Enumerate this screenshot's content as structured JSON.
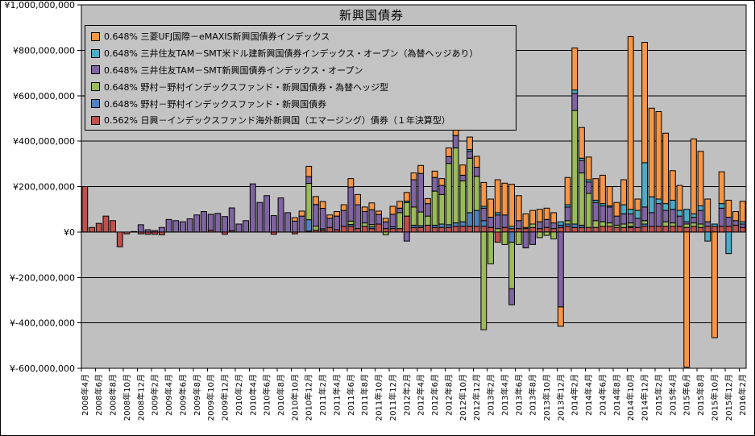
{
  "title": "新興国債券",
  "colors": {
    "plot_bg": "#C0C0C0",
    "chart_bg": "#FFFFFF",
    "border": "#000000",
    "gridline": "#000000"
  },
  "chart_data": {
    "type": "bar",
    "stacked": true,
    "unit": "JPY (values stored in millions of yen)",
    "title": "新興国債券",
    "grid": true,
    "legend_position": "top-left-inside",
    "y_axis": {
      "min": -600,
      "max": 1000,
      "step": 200,
      "tick_values": [
        1000,
        800,
        600,
        400,
        200,
        0,
        -200,
        -400,
        -600
      ],
      "tick_labels": [
        "¥1,000,000,000",
        "¥800,000,000",
        "¥600,000,000",
        "¥400,000,000",
        "¥200,000,000",
        "¥0",
        "¥-200,000,000",
        "¥-400,000,000",
        "¥-600,000,000"
      ]
    },
    "x_tick_label_every": 2,
    "categories": [
      "2008年4月",
      "2008年5月",
      "2008年6月",
      "2008年7月",
      "2008年8月",
      "2008年9月",
      "2008年10月",
      "2008年11月",
      "2008年12月",
      "2009年1月",
      "2009年2月",
      "2009年3月",
      "2009年4月",
      "2009年5月",
      "2009年6月",
      "2009年7月",
      "2009年8月",
      "2009年9月",
      "2009年10月",
      "2009年11月",
      "2009年12月",
      "2010年1月",
      "2010年2月",
      "2010年3月",
      "2010年4月",
      "2010年5月",
      "2010年6月",
      "2010年7月",
      "2010年8月",
      "2010年9月",
      "2010年10月",
      "2010年11月",
      "2010年12月",
      "2011年1月",
      "2011年2月",
      "2011年3月",
      "2011年4月",
      "2011年5月",
      "2011年6月",
      "2011年7月",
      "2011年8月",
      "2011年9月",
      "2011年10月",
      "2011年11月",
      "2011年12月",
      "2012年1月",
      "2012年2月",
      "2012年3月",
      "2012年4月",
      "2012年5月",
      "2012年6月",
      "2012年7月",
      "2012年8月",
      "2012年9月",
      "2012年10月",
      "2012年11月",
      "2012年12月",
      "2013年1月",
      "2013年2月",
      "2013年3月",
      "2013年4月",
      "2013年5月",
      "2013年6月",
      "2013年7月",
      "2013年8月",
      "2013年9月",
      "2013年10月",
      "2013年11月",
      "2013年12月",
      "2014年1月",
      "2014年2月",
      "2014年3月",
      "2014年4月",
      "2014年5月",
      "2014年6月",
      "2014年7月",
      "2014年8月",
      "2014年9月",
      "2014年10月",
      "2014年11月",
      "2014年12月",
      "2015年1月",
      "2015年2月",
      "2015年3月",
      "2015年4月",
      "2015年5月",
      "2015年6月",
      "2015年7月",
      "2015年8月",
      "2015年9月",
      "2015年10月",
      "2015年11月",
      "2015年12月",
      "2016年1月",
      "2016年2月"
    ],
    "stack_order_bottom_to_top": [
      5,
      4,
      3,
      2,
      1,
      0
    ],
    "series": [
      {
        "name": "0.648% 三菱UFJ国際－eMAXIS新興国債券インデックス",
        "color": "#F79646",
        "values": [
          0,
          0,
          0,
          0,
          0,
          0,
          0,
          0,
          0,
          0,
          0,
          0,
          0,
          0,
          0,
          0,
          0,
          0,
          0,
          0,
          0,
          0,
          0,
          0,
          0,
          0,
          0,
          0,
          0,
          0,
          15,
          22,
          45,
          35,
          30,
          15,
          20,
          25,
          37,
          45,
          20,
          30,
          15,
          15,
          35,
          30,
          38,
          30,
          35,
          22,
          28,
          30,
          38,
          45,
          45,
          55,
          48,
          105,
          80,
          145,
          140,
          185,
          110,
          60,
          60,
          55,
          50,
          45,
          -85,
          120,
          185,
          135,
          100,
          95,
          125,
          85,
          60,
          110,
          760,
          50,
          530,
          390,
          385,
          310,
          130,
          110,
          -595,
          330,
          240,
          100,
          -465,
          140,
          75,
          40,
          90
        ]
      },
      {
        "name": "0.648% 三井住友TAM－SMT米ドル建新興国債券インデックス・オープン（為替ヘッジあり）",
        "color": "#4BACC6",
        "values": [
          0,
          0,
          0,
          0,
          0,
          0,
          0,
          0,
          0,
          0,
          0,
          0,
          0,
          0,
          0,
          0,
          0,
          0,
          0,
          0,
          0,
          0,
          0,
          0,
          0,
          0,
          0,
          0,
          0,
          0,
          0,
          0,
          0,
          0,
          0,
          0,
          0,
          0,
          0,
          0,
          0,
          0,
          0,
          0,
          0,
          0,
          6,
          0,
          0,
          0,
          0,
          0,
          0,
          0,
          0,
          8,
          0,
          8,
          0,
          10,
          0,
          10,
          0,
          5,
          0,
          0,
          0,
          0,
          15,
          10,
          15,
          10,
          10,
          10,
          10,
          5,
          0,
          40,
          20,
          35,
          195,
          70,
          20,
          30,
          40,
          25,
          55,
          15,
          20,
          -40,
          10,
          20,
          -95,
          0,
          10
        ]
      },
      {
        "name": "0.648% 三井住友TAM－SMT新興国債券インデックス・オープン",
        "color": "#8064A2",
        "values": [
          0,
          0,
          0,
          0,
          0,
          0,
          0,
          0,
          32,
          10,
          6,
          20,
          55,
          50,
          45,
          58,
          75,
          90,
          70,
          82,
          68,
          100,
          35,
          50,
          212,
          130,
          160,
          72,
          150,
          85,
          48,
          70,
          30,
          95,
          90,
          40,
          60,
          70,
          150,
          105,
          50,
          65,
          42,
          30,
          55,
          20,
          -40,
          120,
          170,
          55,
          60,
          40,
          30,
          55,
          25,
          30,
          40,
          55,
          45,
          60,
          55,
          -70,
          35,
          -70,
          -55,
          30,
          35,
          25,
          -330,
          60,
          75,
          55,
          50,
          80,
          70,
          70,
          40,
          45,
          40,
          40,
          60,
          60,
          100,
          50,
          60,
          45,
          10,
          25,
          60,
          20,
          0,
          80,
          40,
          20,
          15
        ]
      },
      {
        "name": "0.648% 野村－野村インデックスファンド・新興国債券・為替ヘッジ型",
        "color": "#9BBB59",
        "values": [
          0,
          0,
          0,
          0,
          0,
          0,
          0,
          0,
          0,
          0,
          0,
          0,
          0,
          0,
          0,
          0,
          0,
          0,
          0,
          0,
          0,
          0,
          0,
          0,
          0,
          0,
          0,
          0,
          0,
          0,
          0,
          0,
          160,
          18,
          0,
          0,
          0,
          0,
          15,
          0,
          15,
          10,
          0,
          -12,
          0,
          70,
          60,
          80,
          60,
          40,
          150,
          130,
          270,
          330,
          180,
          240,
          150,
          -430,
          -140,
          15,
          -55,
          -205,
          -55,
          0,
          15,
          -25,
          -15,
          -30,
          0,
          15,
          500,
          230,
          150,
          30,
          20,
          15,
          10,
          15,
          15,
          0,
          15,
          0,
          0,
          20,
          15,
          0,
          15,
          15,
          15,
          0,
          0,
          0,
          0,
          0,
          0
        ]
      },
      {
        "name": "0.648% 野村－野村インデックスファンド・新興国債券",
        "color": "#4F81BD",
        "values": [
          0,
          0,
          0,
          0,
          0,
          0,
          0,
          0,
          0,
          0,
          0,
          0,
          0,
          0,
          0,
          0,
          0,
          0,
          0,
          0,
          0,
          0,
          0,
          0,
          0,
          0,
          0,
          0,
          0,
          0,
          0,
          0,
          50,
          0,
          6,
          0,
          0,
          0,
          8,
          0,
          0,
          8,
          0,
          0,
          8,
          0,
          0,
          10,
          8,
          0,
          10,
          15,
          12,
          15,
          20,
          60,
          70,
          25,
          0,
          0,
          0,
          -45,
          0,
          0,
          0,
          0,
          0,
          0,
          10,
          10,
          15,
          10,
          0,
          0,
          0,
          0,
          0,
          0,
          5,
          0,
          10,
          0,
          0,
          0,
          0,
          0,
          0,
          0,
          0,
          0,
          0,
          0,
          0,
          0,
          0
        ]
      },
      {
        "name": "0.562% 日興－インデックスファンド海外新興国（エマージング）債券（１年決算型）",
        "color": "#C0504D",
        "values": [
          200,
          20,
          38,
          70,
          50,
          -65,
          -8,
          2,
          -8,
          -10,
          -10,
          -12,
          0,
          0,
          0,
          0,
          0,
          0,
          8,
          0,
          -10,
          6,
          0,
          0,
          0,
          0,
          0,
          -10,
          0,
          0,
          -8,
          0,
          4,
          8,
          8,
          20,
          10,
          25,
          25,
          15,
          25,
          15,
          35,
          15,
          15,
          15,
          70,
          20,
          20,
          30,
          20,
          20,
          20,
          25,
          25,
          25,
          25,
          25,
          20,
          -45,
          20,
          15,
          15,
          15,
          20,
          15,
          20,
          15,
          20,
          25,
          20,
          20,
          20,
          20,
          25,
          25,
          20,
          20,
          20,
          20,
          25,
          25,
          25,
          25,
          25,
          25,
          20,
          25,
          20,
          25,
          25,
          25,
          25,
          30,
          20
        ]
      }
    ]
  }
}
